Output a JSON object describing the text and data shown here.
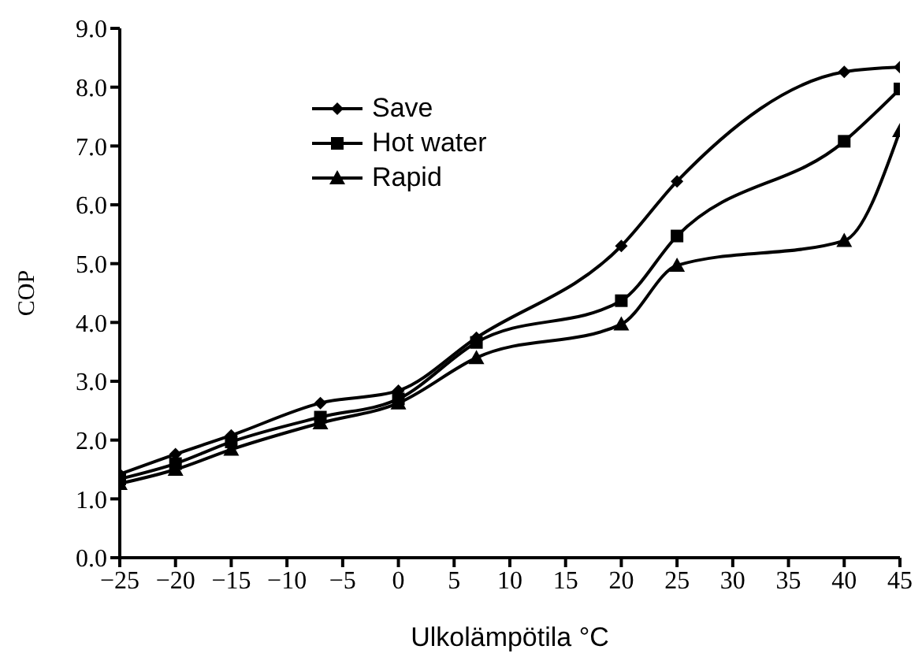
{
  "chart_data": {
    "type": "line",
    "xlabel": "Ulkolämpötila °C",
    "ylabel": "COP",
    "x": [
      -25,
      -20,
      -15,
      -7,
      0,
      7,
      20,
      25,
      40,
      45
    ],
    "series": [
      {
        "name": "Save",
        "color": "#000000",
        "marker": "diamond",
        "values": [
          1.42,
          1.76,
          2.08,
          2.63,
          2.84,
          3.74,
          5.3,
          6.4,
          8.26,
          8.34
        ]
      },
      {
        "name": "Hot water",
        "color": "#000000",
        "marker": "square",
        "values": [
          1.34,
          1.6,
          1.97,
          2.39,
          2.7,
          3.66,
          4.37,
          5.47,
          7.08,
          7.97
        ]
      },
      {
        "name": "Rapid",
        "color": "#000000",
        "marker": "triangle",
        "values": [
          1.26,
          1.5,
          1.84,
          2.29,
          2.63,
          3.4,
          3.97,
          4.97,
          5.39,
          7.26
        ]
      }
    ],
    "xlim": [
      -25,
      45
    ],
    "xticks": [
      -25,
      -20,
      -15,
      -10,
      -5,
      0,
      5,
      10,
      15,
      20,
      25,
      30,
      35,
      40,
      45
    ],
    "ylim": [
      0,
      9
    ],
    "yticks": [
      {
        "value": 0,
        "label": "0.0"
      },
      {
        "value": 1,
        "label": "1.0"
      },
      {
        "value": 2,
        "label": "2.0"
      },
      {
        "value": 3,
        "label": "3.0"
      },
      {
        "value": 4,
        "label": "4.0"
      },
      {
        "value": 5,
        "label": "5.0"
      },
      {
        "value": 6,
        "label": "6.0"
      },
      {
        "value": 7,
        "label": "7.0"
      },
      {
        "value": 8,
        "label": "8.0"
      },
      {
        "value": 9,
        "label": "9.0"
      }
    ],
    "grid": false,
    "legend": "top left",
    "line_style": "solid"
  }
}
